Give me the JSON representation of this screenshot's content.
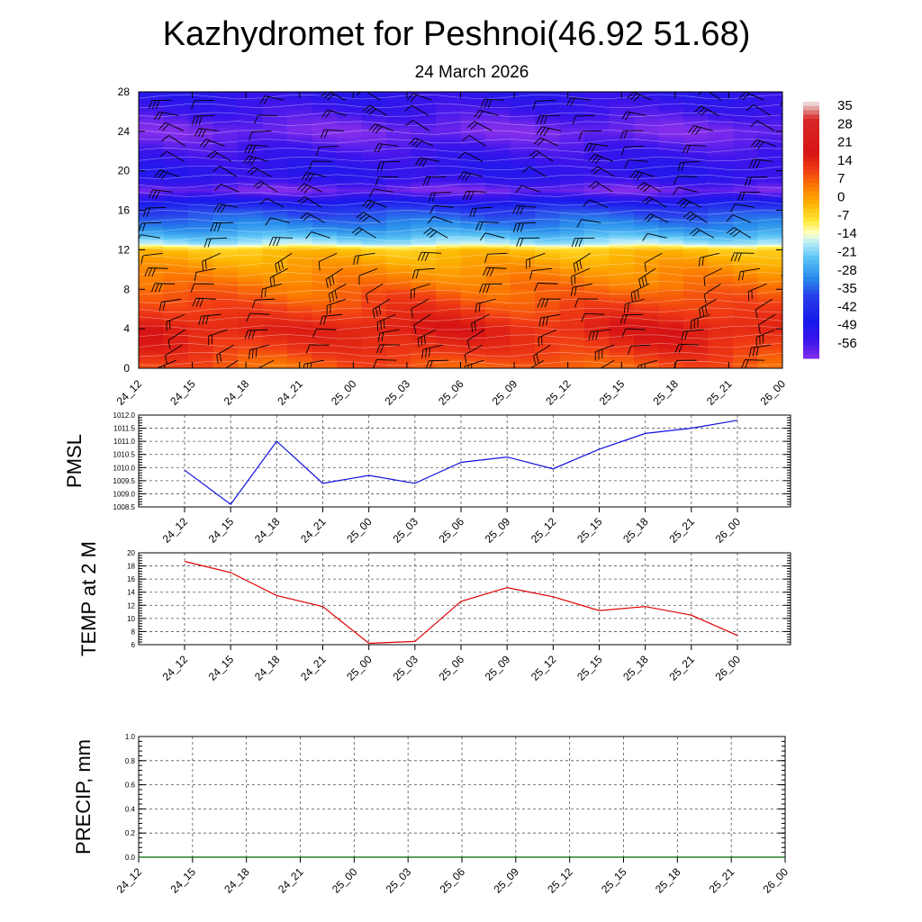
{
  "title": "Kazhydromet for Peshnoi(46.92 51.68)",
  "subtitle": "24 March 2026",
  "colors": {
    "pmsl_line": "#1010e0",
    "temp_line": "#e00000",
    "precip_line": "#006400",
    "wind_barb": "#000000"
  },
  "chart_data": [
    {
      "type": "heatmap",
      "name": "cross-section",
      "description_variable": "temperature",
      "x_categories": [
        "24_12",
        "24_15",
        "24_18",
        "24_21",
        "25_00",
        "25_03",
        "25_06",
        "25_09",
        "25_12",
        "25_15",
        "25_18",
        "25_21",
        "26_00"
      ],
      "ylim": [
        0,
        28
      ],
      "yticks": [
        "0",
        "4",
        "8",
        "12",
        "16",
        "20",
        "24",
        "28"
      ],
      "colorbar_labels": [
        "35",
        "28",
        "21",
        "14",
        "7",
        "0",
        "-7",
        "-14",
        "-21",
        "-28",
        "-35",
        "-42",
        "-49",
        "-56"
      ],
      "colorbar_range": [
        -63,
        42
      ],
      "levels": [
        0,
        2,
        4,
        6,
        8,
        10,
        12,
        12.6,
        14,
        16,
        17,
        18,
        19,
        20,
        22,
        24,
        26,
        28
      ],
      "values_by_level": [
        10,
        16,
        19,
        14,
        9,
        4,
        -2,
        -16,
        -28,
        -38,
        -50,
        -62,
        -54,
        -52,
        -56,
        -62,
        -56,
        -52
      ]
    },
    {
      "type": "line",
      "name": "PMSL",
      "ylabel": "PMSL",
      "x": [
        "24_12",
        "24_15",
        "24_18",
        "24_21",
        "25_00",
        "25_03",
        "25_06",
        "25_09",
        "25_12",
        "25_15",
        "25_18",
        "25_21",
        "26_00"
      ],
      "values": [
        1009.9,
        1008.6,
        1011.0,
        1009.4,
        1009.7,
        1009.4,
        1010.2,
        1010.4,
        1009.95,
        1010.7,
        1011.3,
        1011.5,
        1011.8
      ],
      "ylim": [
        1008.5,
        1012.0
      ],
      "yticks": [
        "1008.5",
        "1009.0",
        "1009.5",
        "1010.0",
        "1010.5",
        "1011.0",
        "1011.5",
        "1012.0"
      ]
    },
    {
      "type": "line",
      "name": "TEMP at 2 M",
      "ylabel": "TEMP at 2 M",
      "x": [
        "24_12",
        "24_15",
        "24_18",
        "24_21",
        "25_00",
        "25_03",
        "25_06",
        "25_09",
        "25_12",
        "25_15",
        "25_18",
        "25_21",
        "26_00"
      ],
      "values": [
        18.7,
        17.0,
        13.5,
        11.8,
        6.2,
        6.5,
        12.6,
        14.7,
        13.3,
        11.2,
        11.8,
        10.5,
        7.4
      ],
      "ylim": [
        6,
        20
      ],
      "yticks": [
        "6",
        "8",
        "10",
        "12",
        "14",
        "16",
        "18",
        "20"
      ]
    },
    {
      "type": "line",
      "name": "PRECIP, mm",
      "ylabel": "PRECIP, mm",
      "x": [
        "24_12",
        "24_15",
        "24_18",
        "24_21",
        "25_00",
        "25_03",
        "25_06",
        "25_09",
        "25_12",
        "25_15",
        "25_18",
        "25_21",
        "26_00"
      ],
      "values": [
        0,
        0,
        0,
        0,
        0,
        0,
        0,
        0,
        0,
        0,
        0,
        0,
        0
      ],
      "ylim": [
        0.0,
        1.0
      ],
      "yticks": [
        "0.0",
        "0.2",
        "0.4",
        "0.6",
        "0.8",
        "1.0"
      ]
    }
  ]
}
